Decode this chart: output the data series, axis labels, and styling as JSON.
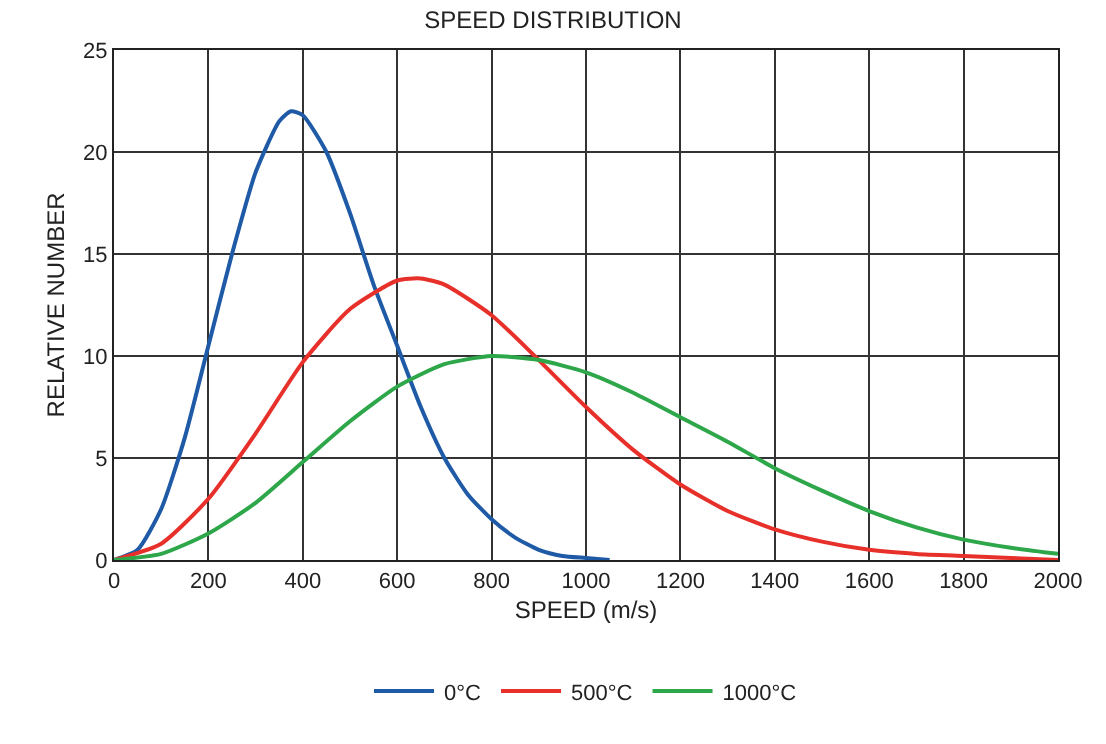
{
  "chart_data": {
    "type": "line",
    "title": "SPEED DISTRIBUTION",
    "xlabel": "SPEED (m/s)",
    "ylabel": "RELATIVE NUMBER",
    "xlim": [
      0,
      2000
    ],
    "xticks": [
      0,
      200,
      400,
      600,
      800,
      1000,
      1200,
      1400,
      1600,
      1800,
      2000
    ],
    "ylim": [
      0,
      25
    ],
    "yticks": [
      0,
      5,
      10,
      15,
      20,
      25
    ],
    "grid": true,
    "legend": "bottom",
    "marker": "none",
    "line_style": "solid",
    "series": [
      {
        "name": "0°C",
        "color": "#1f5aa6",
        "x": [
          0,
          50,
          100,
          150,
          200,
          250,
          300,
          350,
          375,
          400,
          450,
          500,
          550,
          600,
          650,
          700,
          750,
          800,
          850,
          900,
          950,
          1000,
          1050
        ],
        "values": [
          0,
          0.5,
          2.5,
          6,
          10.5,
          15,
          19,
          21.5,
          22,
          21.8,
          20,
          17,
          13.5,
          10.5,
          7.5,
          5,
          3.2,
          2,
          1.1,
          0.5,
          0.2,
          0.1,
          0
        ]
      },
      {
        "name": "500°C",
        "color": "#e8302a",
        "x": [
          0,
          100,
          200,
          300,
          400,
          500,
          600,
          650,
          700,
          800,
          900,
          1000,
          1100,
          1200,
          1300,
          1400,
          1500,
          1600,
          1700,
          1800,
          1900,
          2000
        ],
        "values": [
          0,
          0.8,
          3,
          6.2,
          9.7,
          12.3,
          13.7,
          13.8,
          13.5,
          12,
          9.8,
          7.5,
          5.4,
          3.7,
          2.4,
          1.5,
          0.9,
          0.5,
          0.3,
          0.2,
          0.1,
          0
        ]
      },
      {
        "name": "1000°C",
        "color": "#2ea64a",
        "x": [
          0,
          100,
          200,
          300,
          400,
          500,
          600,
          700,
          800,
          900,
          1000,
          1100,
          1200,
          1300,
          1400,
          1500,
          1600,
          1700,
          1800,
          1900,
          2000
        ],
        "values": [
          0,
          0.3,
          1.3,
          2.8,
          4.8,
          6.8,
          8.5,
          9.6,
          10,
          9.8,
          9.2,
          8.2,
          7,
          5.8,
          4.5,
          3.4,
          2.4,
          1.6,
          1,
          0.6,
          0.3
        ]
      }
    ]
  }
}
